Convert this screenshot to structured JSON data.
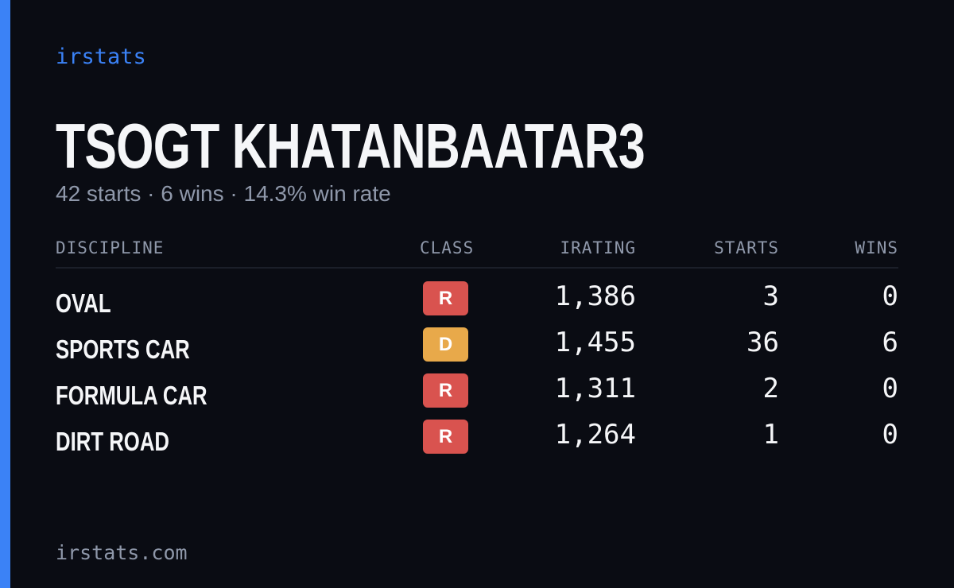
{
  "brand": "irstats",
  "header": {
    "title": "TSOGT KHATANBAATAR3",
    "subtitle": "42 starts · 6 wins · 14.3% win rate"
  },
  "table": {
    "columns": [
      "DISCIPLINE",
      "CLASS",
      "IRATING",
      "STARTS",
      "WINS"
    ],
    "rows": [
      {
        "discipline": "OVAL",
        "class": "R",
        "class_color": "#d9534f",
        "irating": "1,386",
        "starts": "3",
        "wins": "0"
      },
      {
        "discipline": "SPORTS CAR",
        "class": "D",
        "class_color": "#e8a94a",
        "irating": "1,455",
        "starts": "36",
        "wins": "6"
      },
      {
        "discipline": "FORMULA CAR",
        "class": "R",
        "class_color": "#d9534f",
        "irating": "1,311",
        "starts": "2",
        "wins": "0"
      },
      {
        "discipline": "DIRT ROAD",
        "class": "R",
        "class_color": "#d9534f",
        "irating": "1,264",
        "starts": "1",
        "wins": "0"
      }
    ]
  },
  "footer": "irstats.com"
}
